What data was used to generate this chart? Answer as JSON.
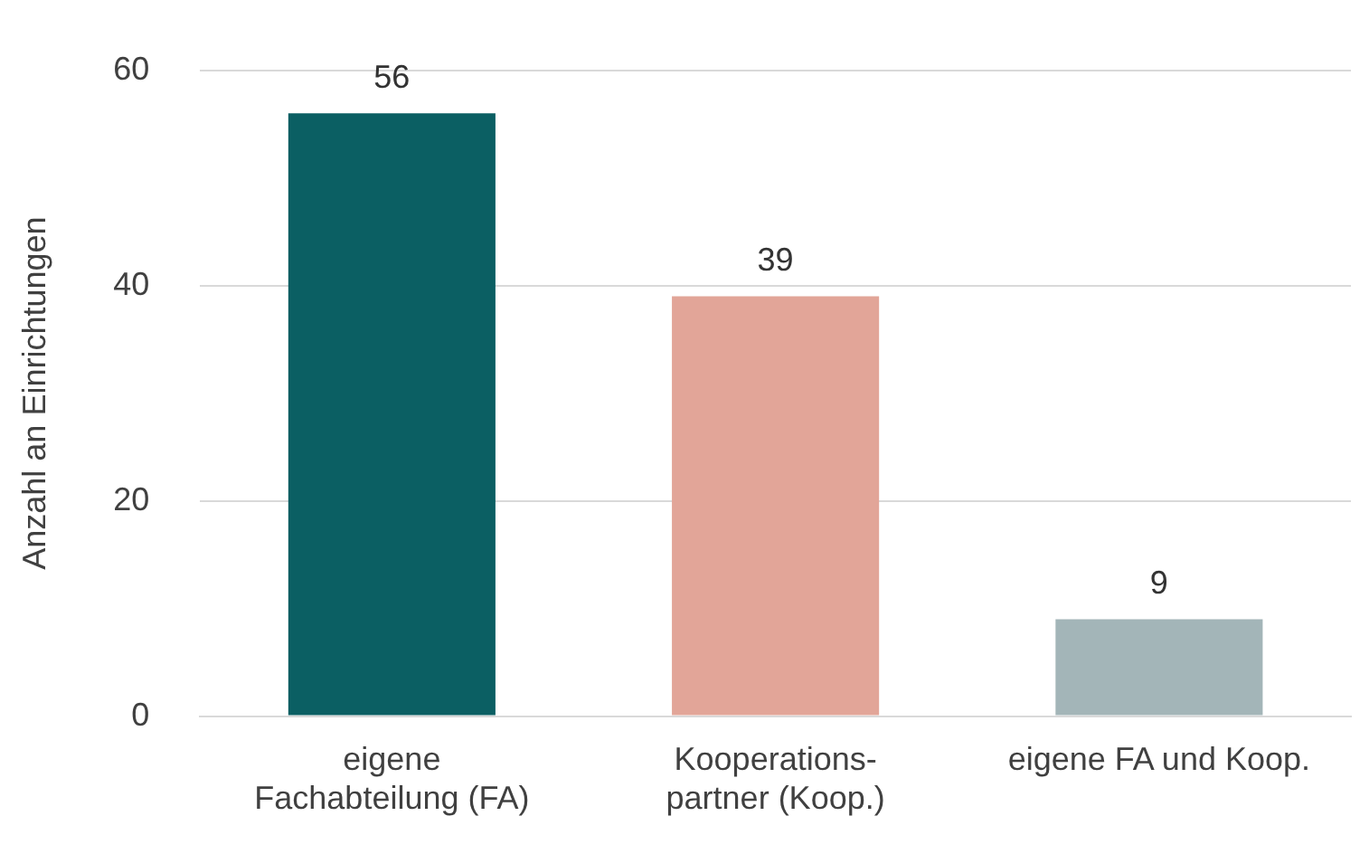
{
  "chart_data": {
    "type": "bar",
    "ylabel": "Anzahl an Einrichtungen",
    "categories": [
      "eigene Fachabteilung (FA)",
      "Kooperations-partner (Koop.)",
      "eigene FA und Koop."
    ],
    "values": [
      56,
      39,
      9
    ],
    "colors": [
      "#0b5f63",
      "#e2a598",
      "#a3b5b8"
    ],
    "ylim": [
      0,
      60
    ],
    "yticks": [
      0,
      20,
      40,
      60
    ],
    "grid": "y",
    "data_labels": true,
    "legend": false
  }
}
